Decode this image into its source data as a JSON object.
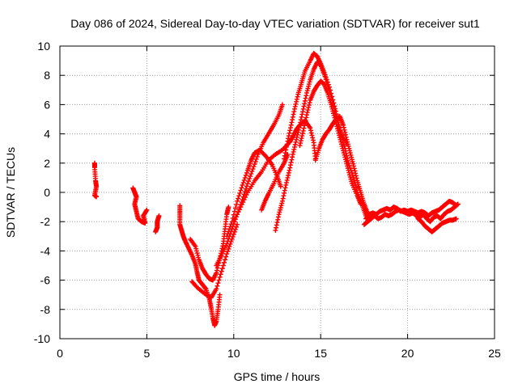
{
  "chart_data": {
    "type": "scatter",
    "title": "Day 086 of 2024, Sidereal Day-to-day VTEC variation (SDTVAR) for receiver sut1",
    "xlabel": "GPS time / hours",
    "ylabel": "SDTVAR / TECUs",
    "xlim": [
      0,
      25
    ],
    "ylim": [
      -10,
      10
    ],
    "xticks": [
      0,
      5,
      10,
      15,
      20,
      25
    ],
    "yticks": [
      -10,
      -8,
      -6,
      -4,
      -2,
      0,
      2,
      4,
      6,
      8,
      10
    ],
    "grid": true,
    "marker": "+",
    "series": [
      {
        "name": "arc-early-1",
        "color": "#ff0000",
        "points": [
          [
            2.0,
            2.0
          ],
          [
            2.0,
            1.7
          ],
          [
            2.05,
            0.8
          ],
          [
            2.1,
            0.4
          ],
          [
            2.0,
            -0.2
          ],
          [
            2.1,
            -0.3
          ]
        ]
      },
      {
        "name": "arc-early-2",
        "color": "#ff0000",
        "points": [
          [
            4.2,
            0.3
          ],
          [
            4.3,
            0.0
          ],
          [
            4.4,
            -0.3
          ],
          [
            4.3,
            -0.8
          ],
          [
            4.4,
            -1.3
          ],
          [
            4.5,
            -1.8
          ],
          [
            4.7,
            -2.0
          ],
          [
            4.9,
            -2.1
          ],
          [
            4.8,
            -1.6
          ],
          [
            5.0,
            -1.2
          ]
        ]
      },
      {
        "name": "arc-early-3",
        "color": "#ff0000",
        "points": [
          [
            5.7,
            -1.6
          ],
          [
            5.6,
            -2.0
          ],
          [
            5.6,
            -2.4
          ],
          [
            5.5,
            -2.7
          ]
        ]
      },
      {
        "name": "arc-dip",
        "color": "#ff0000",
        "points": [
          [
            6.9,
            -0.9
          ],
          [
            6.9,
            -1.5
          ],
          [
            6.9,
            -2.2
          ],
          [
            7.0,
            -2.6
          ],
          [
            7.1,
            -3.0
          ],
          [
            7.2,
            -3.3
          ],
          [
            7.4,
            -3.8
          ],
          [
            7.6,
            -4.3
          ],
          [
            7.8,
            -4.9
          ],
          [
            7.9,
            -5.5
          ],
          [
            8.0,
            -6.0
          ],
          [
            8.2,
            -6.3
          ],
          [
            8.4,
            -6.6
          ],
          [
            8.6,
            -7.3
          ],
          [
            8.7,
            -7.9
          ],
          [
            8.8,
            -8.6
          ],
          [
            8.9,
            -9.1
          ],
          [
            9.0,
            -8.8
          ],
          [
            9.1,
            -8.0
          ],
          [
            9.2,
            -7.0
          ]
        ]
      },
      {
        "name": "arc-dip-2",
        "color": "#ff0000",
        "points": [
          [
            7.5,
            -3.2
          ],
          [
            7.8,
            -3.7
          ],
          [
            8.0,
            -4.6
          ],
          [
            8.2,
            -5.2
          ],
          [
            8.4,
            -5.6
          ],
          [
            8.6,
            -5.9
          ],
          [
            8.8,
            -6.0
          ],
          [
            9.0,
            -5.5
          ],
          [
            9.2,
            -4.5
          ],
          [
            9.4,
            -3.5
          ],
          [
            9.5,
            -2.5
          ],
          [
            9.6,
            -1.5
          ],
          [
            9.7,
            -1.0
          ]
        ]
      },
      {
        "name": "arc-dip-3",
        "color": "#ff0000",
        "points": [
          [
            7.6,
            -6.1
          ],
          [
            7.9,
            -6.5
          ],
          [
            8.3,
            -6.9
          ],
          [
            8.7,
            -7.2
          ],
          [
            9.0,
            -6.6
          ],
          [
            9.3,
            -5.4
          ],
          [
            9.6,
            -4.2
          ],
          [
            9.9,
            -3.2
          ],
          [
            10.2,
            -2.2
          ]
        ]
      },
      {
        "name": "arc-rise-A",
        "color": "#ff0000",
        "points": [
          [
            9.0,
            -5.0
          ],
          [
            9.3,
            -4.3
          ],
          [
            9.6,
            -3.5
          ],
          [
            9.9,
            -2.5
          ],
          [
            10.2,
            -1.5
          ],
          [
            10.5,
            -0.5
          ],
          [
            10.8,
            0.6
          ],
          [
            11.1,
            1.6
          ],
          [
            11.4,
            2.6
          ],
          [
            11.7,
            3.4
          ],
          [
            12.0,
            4.0
          ],
          [
            12.3,
            4.6
          ],
          [
            12.6,
            5.3
          ],
          [
            12.8,
            6.0
          ]
        ]
      },
      {
        "name": "arc-rise-B",
        "color": "#ff0000",
        "points": [
          [
            9.6,
            -3.0
          ],
          [
            9.9,
            -2.0
          ],
          [
            10.2,
            -0.6
          ],
          [
            10.5,
            0.5
          ],
          [
            10.8,
            1.5
          ],
          [
            11.0,
            2.2
          ],
          [
            11.2,
            2.7
          ],
          [
            11.5,
            2.9
          ],
          [
            11.9,
            2.4
          ],
          [
            12.2,
            1.9
          ],
          [
            12.5,
            1.1
          ],
          [
            12.7,
            0.4
          ]
        ]
      },
      {
        "name": "arc-rise-C",
        "color": "#ff0000",
        "points": [
          [
            10.0,
            -2.0
          ],
          [
            10.4,
            -1.0
          ],
          [
            10.8,
            0.0
          ],
          [
            11.2,
            0.8
          ],
          [
            11.6,
            1.4
          ],
          [
            12.0,
            2.2
          ],
          [
            12.4,
            2.6
          ],
          [
            12.8,
            2.9
          ],
          [
            13.2,
            3.4
          ],
          [
            13.4,
            3.8
          ],
          [
            13.6,
            4.3
          ],
          [
            13.8,
            4.6
          ],
          [
            14.1,
            4.9
          ],
          [
            14.4,
            4.4
          ],
          [
            14.6,
            3.4
          ],
          [
            14.7,
            2.3
          ]
        ]
      },
      {
        "name": "arc-low",
        "color": "#ff0000",
        "points": [
          [
            11.6,
            -1.2
          ],
          [
            11.8,
            -0.6
          ],
          [
            12.0,
            -0.1
          ],
          [
            12.3,
            0.6
          ],
          [
            12.6,
            1.4
          ],
          [
            12.9,
            2.0
          ],
          [
            13.1,
            2.6
          ]
        ]
      },
      {
        "name": "arc-peak-1",
        "color": "#ff0000",
        "points": [
          [
            12.4,
            -2.6
          ],
          [
            12.6,
            -1.5
          ],
          [
            12.8,
            -0.6
          ],
          [
            13.0,
            0.5
          ],
          [
            13.2,
            1.5
          ],
          [
            13.4,
            2.6
          ],
          [
            13.6,
            3.6
          ],
          [
            13.8,
            4.6
          ],
          [
            14.0,
            5.7
          ],
          [
            14.2,
            6.8
          ],
          [
            14.4,
            7.7
          ],
          [
            14.6,
            8.4
          ],
          [
            14.8,
            8.9
          ],
          [
            15.0,
            8.7
          ],
          [
            15.2,
            8.1
          ],
          [
            15.5,
            7.0
          ],
          [
            15.8,
            5.6
          ],
          [
            16.1,
            4.2
          ],
          [
            16.4,
            3.0
          ],
          [
            16.6,
            2.0
          ],
          [
            16.9,
            1.0
          ],
          [
            17.1,
            0.0
          ],
          [
            17.4,
            -0.9
          ],
          [
            17.6,
            -1.6
          ]
        ]
      },
      {
        "name": "arc-peak-2",
        "color": "#ff0000",
        "points": [
          [
            12.9,
            2.3
          ],
          [
            13.1,
            3.5
          ],
          [
            13.3,
            4.6
          ],
          [
            13.5,
            5.7
          ],
          [
            13.7,
            6.7
          ],
          [
            13.9,
            7.5
          ],
          [
            14.1,
            8.3
          ],
          [
            14.4,
            9.0
          ],
          [
            14.6,
            9.5
          ],
          [
            14.8,
            9.3
          ],
          [
            15.0,
            8.8
          ],
          [
            15.2,
            8.2
          ],
          [
            15.5,
            7.2
          ],
          [
            15.8,
            5.9
          ],
          [
            16.0,
            4.8
          ],
          [
            16.2,
            4.0
          ],
          [
            16.5,
            3.3
          ]
        ]
      },
      {
        "name": "arc-peak-3",
        "color": "#ff0000",
        "points": [
          [
            13.8,
            3.2
          ],
          [
            14.0,
            4.2
          ],
          [
            14.2,
            5.3
          ],
          [
            14.4,
            6.3
          ],
          [
            14.6,
            6.9
          ],
          [
            14.8,
            7.3
          ],
          [
            15.0,
            7.6
          ],
          [
            15.2,
            7.4
          ],
          [
            15.4,
            6.8
          ],
          [
            15.6,
            6.0
          ],
          [
            15.8,
            5.1
          ],
          [
            16.0,
            4.2
          ],
          [
            16.2,
            3.3
          ],
          [
            16.4,
            2.4
          ],
          [
            16.6,
            1.5
          ],
          [
            16.8,
            0.6
          ],
          [
            17.1,
            -0.2
          ],
          [
            17.3,
            -0.8
          ]
        ]
      },
      {
        "name": "arc-peak-4",
        "color": "#ff0000",
        "points": [
          [
            14.7,
            2.2
          ],
          [
            14.9,
            3.0
          ],
          [
            15.1,
            3.6
          ],
          [
            15.3,
            4.0
          ],
          [
            15.5,
            4.3
          ],
          [
            15.7,
            4.7
          ],
          [
            15.9,
            5.0
          ],
          [
            16.1,
            5.2
          ],
          [
            16.3,
            4.6
          ],
          [
            16.5,
            3.6
          ],
          [
            16.7,
            2.7
          ],
          [
            16.9,
            1.8
          ],
          [
            17.1,
            0.8
          ],
          [
            17.3,
            0.0
          ],
          [
            17.5,
            -0.8
          ],
          [
            17.7,
            -1.4
          ],
          [
            17.8,
            -1.9
          ]
        ]
      },
      {
        "name": "tail",
        "color": "#ff0000",
        "points": [
          [
            17.5,
            -2.2
          ],
          [
            17.7,
            -2.0
          ],
          [
            17.9,
            -1.8
          ],
          [
            18.1,
            -1.6
          ],
          [
            18.3,
            -1.8
          ],
          [
            18.5,
            -1.7
          ],
          [
            18.7,
            -1.5
          ],
          [
            18.9,
            -1.6
          ],
          [
            19.1,
            -1.5
          ],
          [
            19.3,
            -1.3
          ],
          [
            19.5,
            -1.2
          ],
          [
            19.7,
            -1.3
          ],
          [
            19.9,
            -1.4
          ],
          [
            20.1,
            -1.5
          ],
          [
            20.3,
            -1.4
          ],
          [
            20.5,
            -1.6
          ],
          [
            20.7,
            -1.7
          ],
          [
            20.9,
            -1.5
          ],
          [
            21.1,
            -1.8
          ],
          [
            21.3,
            -2.0
          ],
          [
            21.5,
            -1.7
          ],
          [
            21.7,
            -1.6
          ],
          [
            21.9,
            -1.8
          ],
          [
            22.1,
            -1.5
          ],
          [
            22.3,
            -1.3
          ],
          [
            22.5,
            -1.2
          ],
          [
            22.7,
            -1.0
          ],
          [
            22.9,
            -0.8
          ]
        ]
      },
      {
        "name": "tail-2",
        "color": "#ff0000",
        "points": [
          [
            17.6,
            -1.8
          ],
          [
            17.8,
            -1.5
          ],
          [
            18.0,
            -1.4
          ],
          [
            18.2,
            -1.5
          ],
          [
            18.4,
            -1.3
          ],
          [
            18.6,
            -1.2
          ],
          [
            18.8,
            -1.1
          ],
          [
            19.0,
            -1.2
          ],
          [
            19.2,
            -1.0
          ],
          [
            19.4,
            -1.1
          ],
          [
            19.6,
            -1.3
          ],
          [
            19.8,
            -1.2
          ],
          [
            20.0,
            -1.3
          ],
          [
            20.2,
            -1.2
          ],
          [
            20.4,
            -1.3
          ],
          [
            20.6,
            -1.4
          ],
          [
            20.8,
            -1.3
          ],
          [
            21.0,
            -1.4
          ],
          [
            21.2,
            -1.6
          ],
          [
            21.4,
            -1.4
          ],
          [
            21.6,
            -1.3
          ],
          [
            21.8,
            -1.2
          ],
          [
            22.0,
            -1.0
          ],
          [
            22.2,
            -0.8
          ],
          [
            22.4,
            -0.6
          ],
          [
            22.6,
            -0.7
          ],
          [
            22.8,
            -0.9
          ]
        ]
      },
      {
        "name": "tail-3",
        "color": "#ff0000",
        "points": [
          [
            20.6,
            -1.8
          ],
          [
            20.8,
            -2.0
          ],
          [
            21.0,
            -2.3
          ],
          [
            21.2,
            -2.5
          ],
          [
            21.4,
            -2.7
          ],
          [
            21.6,
            -2.5
          ],
          [
            21.8,
            -2.3
          ],
          [
            22.0,
            -2.1
          ],
          [
            22.2,
            -2.0
          ],
          [
            22.4,
            -1.9
          ],
          [
            22.6,
            -1.9
          ],
          [
            22.8,
            -1.8
          ]
        ]
      }
    ]
  }
}
